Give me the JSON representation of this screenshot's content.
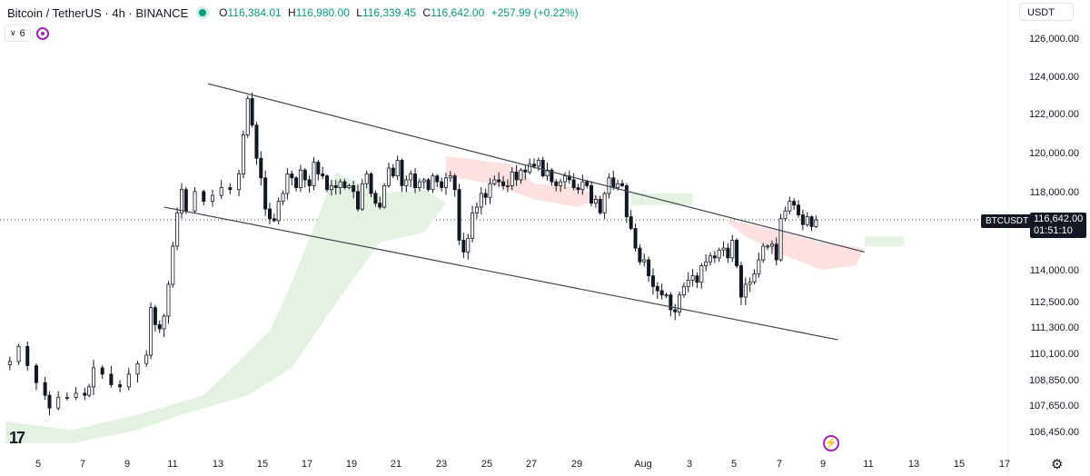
{
  "header": {
    "symbol": "Bitcoin / TetherUS · 4h · BINANCE",
    "open_label": "O",
    "open": "116,384.01",
    "high_label": "H",
    "high": "116,980.00",
    "low_label": "L",
    "low": "116,339.45",
    "close_label": "C",
    "close": "116,642.00",
    "change": "+257.99 (+0.22%)"
  },
  "indicator": {
    "count": "6",
    "expand_icon": "chevron-down-icon",
    "visibility_icon": "eye-circle-icon"
  },
  "currency_button": "USDT",
  "symbol_tag": "BTCUSDT",
  "last_price": {
    "price": "116,642.00",
    "countdown": "01:51:10"
  },
  "logo_text": "17",
  "colors": {
    "up": "#089981",
    "down": "#f23645",
    "candle": "#131722",
    "cloud_green": "#e3f2e1",
    "cloud_red": "#fde0e0",
    "trendline": "#434651"
  },
  "chart_data": {
    "type": "candlestick",
    "price_axis_ticks": [
      "126,000.00",
      "124,000.00",
      "122,000.00",
      "120,000.00",
      "118,000.00",
      "114,000.00",
      "112,500.00",
      "111,300.00",
      "110,100.00",
      "108,850.00",
      "107,650.00",
      "106,450.00"
    ],
    "time_axis_ticks": [
      "5",
      "7",
      "9",
      "11",
      "13",
      "15",
      "17",
      "19",
      "21",
      "23",
      "25",
      "27",
      "29",
      "Aug",
      "3",
      "5",
      "7",
      "9",
      "11",
      "13",
      "15",
      "17"
    ],
    "ylim": [
      106000,
      127000
    ],
    "last_price": 116642.0,
    "approx_close_path": [
      [
        1,
        109800
      ],
      [
        3,
        110500
      ],
      [
        5,
        109600
      ],
      [
        7,
        108800
      ],
      [
        9,
        108200
      ],
      [
        10,
        107600
      ],
      [
        12,
        108100
      ],
      [
        14,
        108100
      ],
      [
        16,
        108300
      ],
      [
        18,
        108200
      ],
      [
        19,
        108600
      ],
      [
        20,
        109500
      ],
      [
        22,
        109200
      ],
      [
        24,
        108700
      ],
      [
        26,
        108600
      ],
      [
        28,
        109200
      ],
      [
        30,
        109700
      ],
      [
        32,
        110100
      ],
      [
        33,
        112300
      ],
      [
        34,
        111500
      ],
      [
        35,
        111300
      ],
      [
        36,
        111900
      ],
      [
        37,
        113400
      ],
      [
        38,
        115300
      ],
      [
        39,
        117000
      ],
      [
        40,
        118200
      ],
      [
        41,
        117100
      ],
      [
        43,
        118100
      ],
      [
        45,
        117600
      ],
      [
        47,
        117900
      ],
      [
        49,
        118300
      ],
      [
        51,
        118200
      ],
      [
        53,
        119000
      ],
      [
        54,
        121000
      ],
      [
        55,
        122900
      ],
      [
        56,
        121500
      ],
      [
        57,
        119800
      ],
      [
        58,
        118800
      ],
      [
        59,
        117200
      ],
      [
        60,
        116700
      ],
      [
        61,
        116600
      ],
      [
        62,
        117600
      ],
      [
        63,
        118000
      ],
      [
        64,
        119000
      ],
      [
        65,
        118800
      ],
      [
        66,
        118300
      ],
      [
        67,
        119200
      ],
      [
        68,
        118700
      ],
      [
        69,
        118400
      ],
      [
        70,
        119600
      ],
      [
        71,
        119000
      ],
      [
        72,
        118900
      ],
      [
        73,
        118200
      ],
      [
        74,
        118400
      ],
      [
        75,
        118300
      ],
      [
        76,
        118600
      ],
      [
        77,
        118300
      ],
      [
        78,
        118400
      ],
      [
        79,
        118100
      ],
      [
        80,
        117200
      ],
      [
        81,
        118500
      ],
      [
        82,
        119000
      ],
      [
        83,
        118000
      ],
      [
        84,
        117500
      ],
      [
        85,
        117300
      ],
      [
        86,
        118400
      ],
      [
        87,
        119300
      ],
      [
        88,
        118900
      ],
      [
        89,
        119700
      ],
      [
        90,
        118400
      ],
      [
        91,
        118700
      ],
      [
        92,
        119000
      ],
      [
        93,
        118300
      ],
      [
        94,
        118600
      ],
      [
        95,
        118700
      ],
      [
        96,
        118200
      ],
      [
        97,
        118900
      ],
      [
        98,
        118600
      ],
      [
        99,
        118300
      ],
      [
        100,
        118800
      ],
      [
        101,
        118900
      ],
      [
        102,
        118200
      ],
      [
        103,
        115600
      ],
      [
        104,
        115000
      ],
      [
        105,
        115700
      ],
      [
        106,
        117000
      ],
      [
        107,
        117300
      ],
      [
        108,
        118000
      ],
      [
        109,
        117800
      ],
      [
        110,
        118500
      ],
      [
        111,
        118700
      ],
      [
        112,
        118600
      ],
      [
        113,
        118400
      ],
      [
        114,
        118400
      ],
      [
        115,
        119100
      ],
      [
        116,
        118700
      ],
      [
        117,
        119200
      ],
      [
        118,
        119100
      ],
      [
        119,
        119500
      ],
      [
        120,
        119400
      ],
      [
        121,
        119700
      ],
      [
        122,
        118900
      ],
      [
        123,
        119200
      ],
      [
        124,
        118600
      ],
      [
        125,
        118400
      ],
      [
        126,
        118600
      ],
      [
        127,
        118900
      ],
      [
        128,
        118700
      ],
      [
        129,
        118300
      ],
      [
        130,
        118200
      ],
      [
        131,
        118600
      ],
      [
        132,
        118400
      ],
      [
        133,
        117500
      ],
      [
        134,
        117700
      ],
      [
        135,
        117000
      ],
      [
        136,
        118000
      ],
      [
        137,
        118800
      ],
      [
        138,
        118300
      ],
      [
        139,
        118500
      ],
      [
        140,
        118400
      ],
      [
        141,
        116800
      ],
      [
        142,
        116200
      ],
      [
        143,
        115200
      ],
      [
        144,
        114500
      ],
      [
        145,
        114600
      ],
      [
        146,
        113800
      ],
      [
        147,
        113300
      ],
      [
        148,
        113100
      ],
      [
        149,
        112900
      ],
      [
        150,
        112900
      ],
      [
        151,
        112200
      ],
      [
        152,
        112100
      ],
      [
        153,
        112900
      ],
      [
        154,
        113300
      ],
      [
        155,
        113600
      ],
      [
        156,
        113800
      ],
      [
        157,
        113500
      ],
      [
        158,
        114300
      ],
      [
        159,
        114500
      ],
      [
        160,
        114800
      ],
      [
        161,
        114700
      ],
      [
        162,
        115100
      ],
      [
        163,
        115200
      ],
      [
        164,
        114700
      ],
      [
        165,
        115600
      ],
      [
        166,
        114300
      ],
      [
        167,
        112800
      ],
      [
        168,
        113400
      ],
      [
        169,
        113500
      ],
      [
        170,
        113900
      ],
      [
        171,
        114600
      ],
      [
        172,
        115300
      ],
      [
        173,
        115300
      ],
      [
        174,
        115400
      ],
      [
        175,
        114600
      ],
      [
        176,
        116700
      ],
      [
        177,
        117100
      ],
      [
        178,
        117600
      ],
      [
        179,
        117400
      ],
      [
        180,
        116900
      ],
      [
        181,
        116400
      ],
      [
        182,
        116800
      ],
      [
        183,
        116300
      ],
      [
        184,
        116642
      ]
    ],
    "trend_channel": {
      "upper": [
        [
          46,
          123700
        ],
        [
          195,
          115000
        ]
      ],
      "lower": [
        [
          36,
          117300
        ],
        [
          189,
          110800
        ]
      ]
    },
    "ichimoku_cloud": {
      "green": [
        [
          [
            0,
            107000
          ],
          [
            15,
            106600
          ],
          [
            30,
            107300
          ],
          [
            45,
            108200
          ],
          [
            60,
            111200
          ],
          [
            65,
            113500
          ],
          [
            75,
            119100
          ],
          [
            85,
            118000
          ],
          [
            95,
            118200
          ],
          [
            100,
            117500
          ],
          [
            95,
            116000
          ],
          [
            85,
            115500
          ],
          [
            75,
            112500
          ],
          [
            65,
            109500
          ],
          [
            55,
            108200
          ],
          [
            40,
            107300
          ],
          [
            30,
            106600
          ],
          [
            15,
            106000
          ],
          [
            0,
            106000
          ]
        ],
        [
          [
            142,
            118000
          ],
          [
            156,
            118000
          ],
          [
            156,
            117400
          ],
          [
            142,
            117400
          ]
        ],
        [
          [
            195,
            115800
          ],
          [
            204,
            115800
          ],
          [
            204,
            115300
          ],
          [
            195,
            115300
          ]
        ]
      ],
      "red": [
        [
          [
            100,
            119900
          ],
          [
            115,
            119500
          ],
          [
            120,
            118500
          ],
          [
            130,
            118300
          ],
          [
            135,
            117800
          ],
          [
            130,
            117300
          ],
          [
            120,
            117700
          ],
          [
            110,
            118500
          ],
          [
            100,
            118900
          ]
        ],
        [
          [
            163,
            116700
          ],
          [
            175,
            116100
          ],
          [
            185,
            115500
          ],
          [
            195,
            115200
          ],
          [
            193,
            114300
          ],
          [
            185,
            114100
          ],
          [
            175,
            115000
          ],
          [
            168,
            115800
          ]
        ]
      ]
    }
  }
}
